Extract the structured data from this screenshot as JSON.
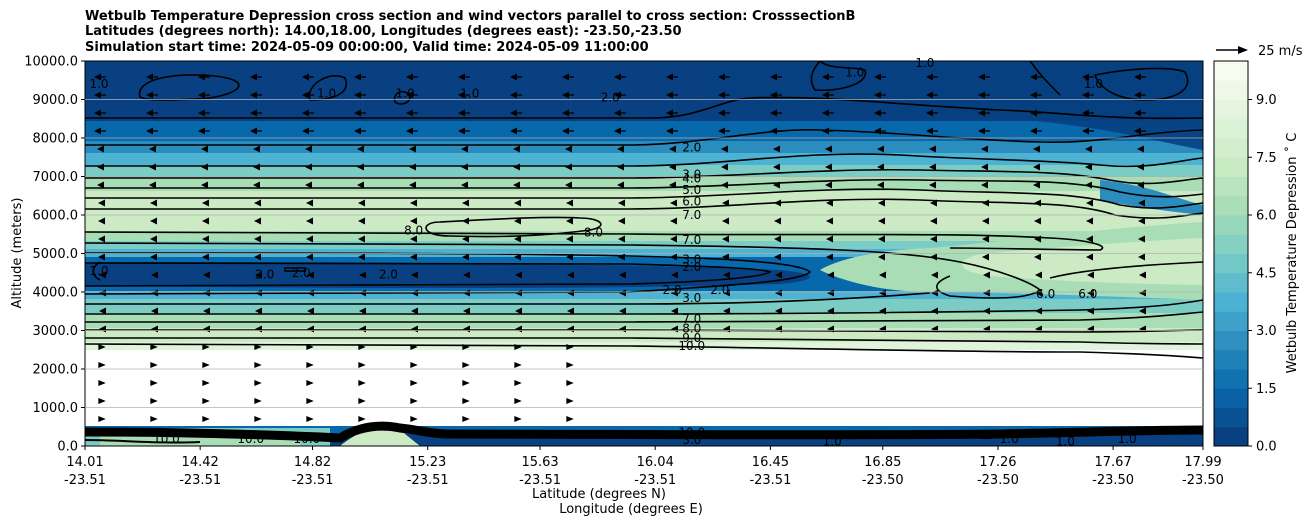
{
  "chart_data": {
    "type": "contour",
    "title_lines": [
      "Wetbulb Temperature Depression cross section and wind vectors parallel to cross section: CrosssectionB",
      "Latitudes (degrees north): 14.00,18.00, Longitudes (degrees east): -23.50,-23.50",
      "Simulation start time: 2024-05-09 00:00:00, Valid time: 2024-05-09 11:00:00"
    ],
    "ylabel": "Altitude (meters)",
    "xlabel_lines": [
      "Latitude (degrees N)",
      "Longitude (degrees E)"
    ],
    "ylim": [
      0,
      10000
    ],
    "y_ticks": [
      "0.0",
      "1000.0",
      "2000.0",
      "3000.0",
      "4000.0",
      "5000.0",
      "6000.0",
      "7000.0",
      "8000.0",
      "9000.0",
      "10000.0"
    ],
    "x_ticks": [
      {
        "lat": "14.01",
        "lon": "-23.51"
      },
      {
        "lat": "14.42",
        "lon": "-23.51"
      },
      {
        "lat": "14.82",
        "lon": "-23.51"
      },
      {
        "lat": "15.23",
        "lon": "-23.51"
      },
      {
        "lat": "15.63",
        "lon": "-23.51"
      },
      {
        "lat": "16.04",
        "lon": "-23.51"
      },
      {
        "lat": "16.45",
        "lon": "-23.51"
      },
      {
        "lat": "16.85",
        "lon": "-23.50"
      },
      {
        "lat": "17.26",
        "lon": "-23.50"
      },
      {
        "lat": "17.67",
        "lon": "-23.50"
      },
      {
        "lat": "17.99",
        "lon": "-23.50"
      }
    ],
    "colorbar": {
      "label": "Wetbulb Temperature Depression $^\\circ$C",
      "label_display": "Wetbulb Temperature Depression ˚ C",
      "range": [
        0,
        10
      ],
      "ticks": [
        "0.0",
        "1.5",
        "3.0",
        "4.5",
        "6.0",
        "7.5",
        "9.0"
      ],
      "levels": 20,
      "colormap": "GnBu_r",
      "colors": [
        "#084081",
        "#0868ac",
        "#2b8cbe",
        "#4eb3d3",
        "#7bccc4",
        "#a8ddb5",
        "#ccebc5",
        "#e0f3db",
        "#f7fcf0"
      ]
    },
    "wind_key": {
      "label": "25 m/s"
    },
    "contour_labels": [
      {
        "value": "1.0",
        "x": 14.06,
        "y": 9400
      },
      {
        "value": "1.0",
        "x": 14.87,
        "y": 9150
      },
      {
        "value": "1.0",
        "x": 15.15,
        "y": 9150
      },
      {
        "value": "1.0",
        "x": 15.38,
        "y": 9150
      },
      {
        "value": "2.0",
        "x": 15.88,
        "y": 9050
      },
      {
        "value": "1.0",
        "x": 16.75,
        "y": 9700
      },
      {
        "value": "1.0",
        "x": 17.0,
        "y": 9950
      },
      {
        "value": "1.0",
        "x": 17.6,
        "y": 9400
      },
      {
        "value": "2.0",
        "x": 16.17,
        "y": 7750
      },
      {
        "value": "3.0",
        "x": 16.17,
        "y": 7050
      },
      {
        "value": "4.0",
        "x": 16.17,
        "y": 6950
      },
      {
        "value": "5.0",
        "x": 16.17,
        "y": 6650
      },
      {
        "value": "6.0",
        "x": 16.17,
        "y": 6350
      },
      {
        "value": "7.0",
        "x": 16.17,
        "y": 6000
      },
      {
        "value": "8.0",
        "x": 15.18,
        "y": 5600
      },
      {
        "value": "8.0",
        "x": 15.82,
        "y": 5550
      },
      {
        "value": "7.0",
        "x": 16.17,
        "y": 5350
      },
      {
        "value": "1.0",
        "x": 14.06,
        "y": 4550
      },
      {
        "value": "2.0",
        "x": 14.65,
        "y": 4450
      },
      {
        "value": "2.0",
        "x": 14.78,
        "y": 4500
      },
      {
        "value": "2.0",
        "x": 15.09,
        "y": 4450
      },
      {
        "value": "3.0",
        "x": 16.17,
        "y": 4850
      },
      {
        "value": "2.0",
        "x": 16.17,
        "y": 4650
      },
      {
        "value": "2.0",
        "x": 16.1,
        "y": 4050
      },
      {
        "value": "2.0",
        "x": 16.27,
        "y": 4050
      },
      {
        "value": "3.0",
        "x": 16.17,
        "y": 3850
      },
      {
        "value": "6.0",
        "x": 17.43,
        "y": 3950
      },
      {
        "value": "6.0",
        "x": 17.58,
        "y": 3950
      },
      {
        "value": "7.0",
        "x": 16.17,
        "y": 3300
      },
      {
        "value": "8.0",
        "x": 16.17,
        "y": 3050
      },
      {
        "value": "9.0",
        "x": 16.17,
        "y": 2800
      },
      {
        "value": "10.0",
        "x": 16.17,
        "y": 2600
      },
      {
        "value": "10.0",
        "x": 14.3,
        "y": 180
      },
      {
        "value": "10.0",
        "x": 14.6,
        "y": 180
      },
      {
        "value": "10.0",
        "x": 14.8,
        "y": 180
      },
      {
        "value": "10.0",
        "x": 16.17,
        "y": 350
      },
      {
        "value": "3.0",
        "x": 16.17,
        "y": 150
      },
      {
        "value": "1.0",
        "x": 16.67,
        "y": 120
      },
      {
        "value": "1.0",
        "x": 17.3,
        "y": 180
      },
      {
        "value": "1.0",
        "x": 17.5,
        "y": 120
      },
      {
        "value": "1.0",
        "x": 17.72,
        "y": 180
      }
    ]
  }
}
